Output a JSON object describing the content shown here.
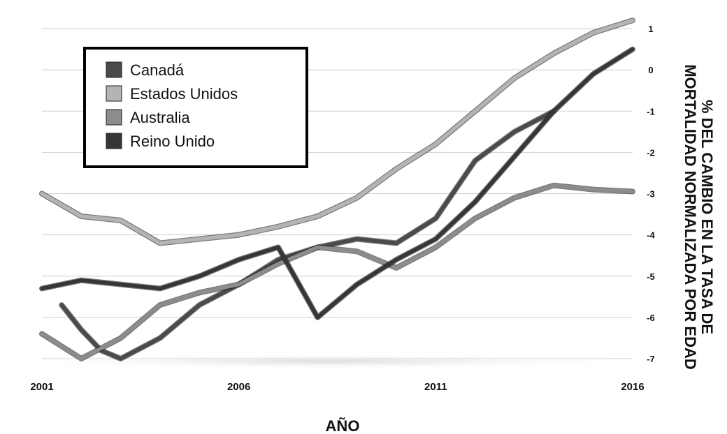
{
  "chart_data": {
    "type": "line",
    "title": "",
    "xlabel": "AÑO",
    "ylabel": "% DEL CAMBIO EN LA TASA DE MORTALIDAD NORMALIZADA POR EDAD",
    "ylabel_lines": [
      "% DEL CAMBIO EN LA TASA DE",
      "MORTALIDAD NORMALIZADA POR EDAD"
    ],
    "x_ticks": [
      "2001",
      "2006",
      "2011",
      "2016"
    ],
    "y_ticks": [
      "1",
      "0",
      "-1",
      "-2",
      "-3",
      "-4",
      "-5",
      "-6",
      "-7"
    ],
    "xlim": [
      2001,
      2016
    ],
    "ylim": [
      -7,
      1
    ],
    "y_axis_side": "right",
    "grid": true,
    "legend_position": "top-left",
    "series": [
      {
        "name": "Canadá",
        "color": "#4a4a4a",
        "x": [
          2001.5,
          2002,
          2002.5,
          2003,
          2004,
          2005,
          2006,
          2007,
          2008,
          2009,
          2010,
          2011,
          2012,
          2013,
          2014
        ],
        "y": [
          -5.7,
          -6.3,
          -6.8,
          -7,
          -6.5,
          -5.7,
          -5.2,
          -4.6,
          -4.3,
          -4.1,
          -4.2,
          -3.6,
          -2.2,
          -1.5,
          -1
        ]
      },
      {
        "name": "Estados Unidos",
        "color": "#b4b4b4",
        "x": [
          2001,
          2002,
          2003,
          2004,
          2005,
          2006,
          2007,
          2008,
          2009,
          2010,
          2011,
          2012,
          2013,
          2014,
          2015,
          2016
        ],
        "y": [
          -3,
          -3.55,
          -3.65,
          -4.2,
          -4.1,
          -4,
          -3.8,
          -3.55,
          -3.1,
          -2.4,
          -1.8,
          -1,
          -0.2,
          0.4,
          0.9,
          1.2
        ]
      },
      {
        "name": "Australia",
        "color": "#8c8c8c",
        "x": [
          2001,
          2002,
          2003,
          2004,
          2005,
          2006,
          2007,
          2008,
          2009,
          2010,
          2011,
          2012,
          2013,
          2014,
          2015,
          2016
        ],
        "y": [
          -6.4,
          -7,
          -6.5,
          -5.7,
          -5.4,
          -5.2,
          -4.7,
          -4.3,
          -4.4,
          -4.8,
          -4.3,
          -3.6,
          -3.1,
          -2.8,
          -2.9,
          -2.95
        ]
      },
      {
        "name": "Reino Unido",
        "color": "#363636",
        "x": [
          2001,
          2002,
          2003,
          2004,
          2005,
          2006,
          2007,
          2008,
          2009,
          2010,
          2011,
          2012,
          2013,
          2014,
          2015,
          2016
        ],
        "y": [
          -5.3,
          -5.1,
          -5.2,
          -5.3,
          -5,
          -4.6,
          -4.3,
          -6,
          -5.2,
          -4.6,
          -4.1,
          -3.2,
          -2.1,
          -1,
          -0.1,
          0.5
        ]
      }
    ]
  }
}
